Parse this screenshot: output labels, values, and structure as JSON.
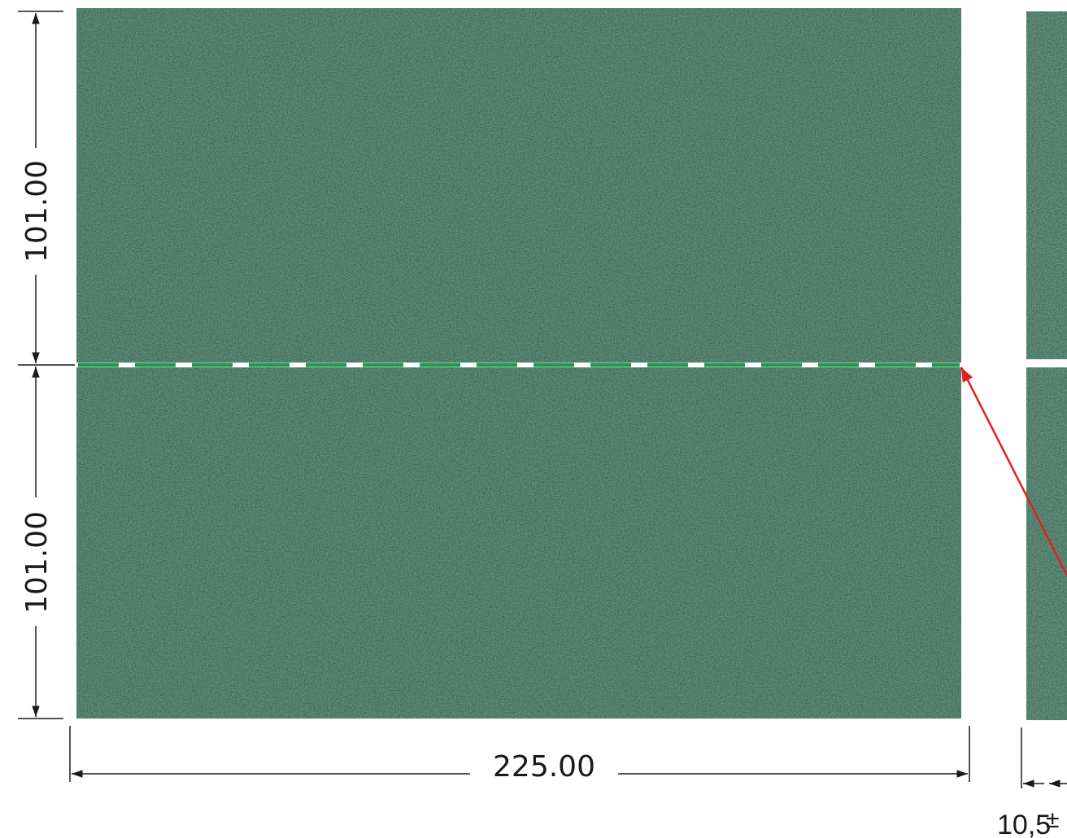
{
  "dimensions": {
    "top_height": "101.00",
    "bottom_height": "101.00",
    "width": "225.00",
    "thickness": "10,5",
    "tolerance_symbol": "±"
  },
  "colors": {
    "pad_base": "#4a7c67",
    "pad_dark": "#355f4e",
    "pad_light": "#8fb8a6",
    "cut_line": "#1a9a4a",
    "pointer_arrow": "#e02020",
    "dimension_line": "#1a1a1a"
  }
}
